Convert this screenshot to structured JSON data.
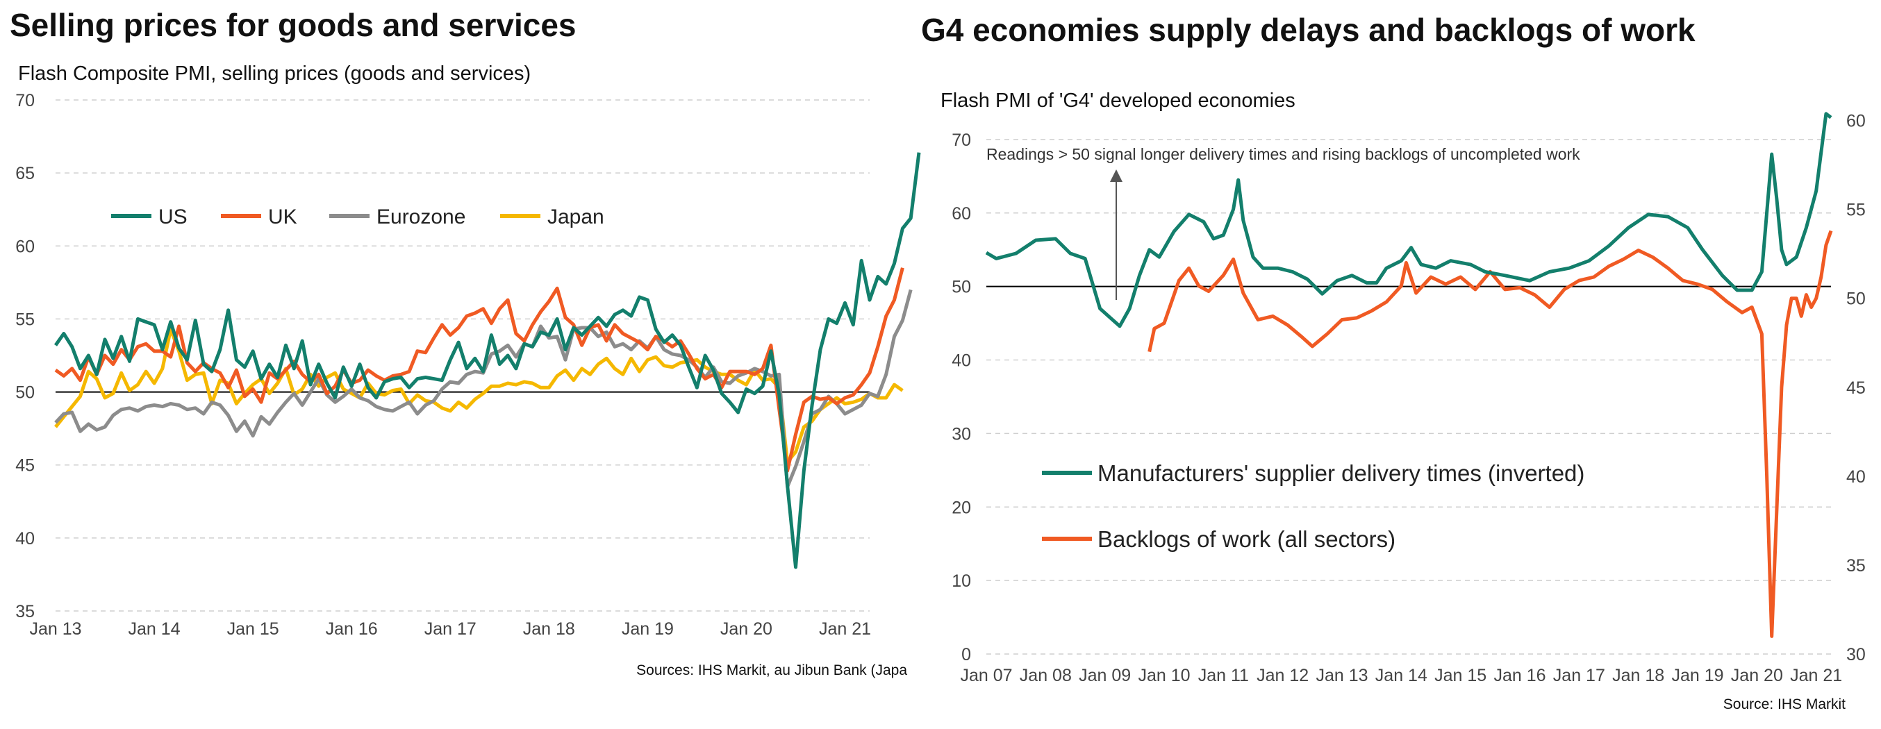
{
  "chart_data": [
    {
      "type": "line",
      "title": "Selling prices for goods and services",
      "subtitle": "Flash Composite PMI, selling prices (goods and services)",
      "source": "Sources: IHS Markit, au Jibun Bank (Japa",
      "x_labels": [
        "Jan 13",
        "Jan 14",
        "Jan 15",
        "Jan 16",
        "Jan 17",
        "Jan 18",
        "Jan 19",
        "Jan 20",
        "Jan 21"
      ],
      "x_start": "Jan 13",
      "x_end": "Apr 21",
      "y_ticks": [
        "35",
        "40",
        "45",
        "50",
        "55",
        "60",
        "65",
        "70"
      ],
      "ylim": [
        35,
        70
      ],
      "reference_line": 50,
      "grid": true,
      "legend_position": "top-left",
      "series": [
        {
          "name": "US",
          "color": "#137f6c",
          "values": [
            53.2,
            54,
            53.1,
            51.6,
            52.5,
            51.2,
            53.6,
            52.3,
            53.8,
            52.1,
            55,
            54.8,
            54.6,
            52.9,
            54.8,
            53,
            52.2,
            54.9,
            51.9,
            51.4,
            52.9,
            55.6,
            52.2,
            51.7,
            52.8,
            50.9,
            51.9,
            51,
            53.2,
            51.6,
            53.5,
            50.5,
            51.9,
            50.6,
            49.6,
            51.7,
            50.4,
            51.9,
            50.3,
            49.6,
            50.7,
            50.9,
            51,
            50.3,
            50.9,
            51,
            50.9,
            50.8,
            52.2,
            53.4,
            51.6,
            52.3,
            51.4,
            53.9,
            51.9,
            52.5,
            51.6,
            53.3,
            53.1,
            54.1,
            53.9,
            55,
            52.9,
            54.4,
            53.9,
            54.5,
            55.1,
            54.5,
            55.3,
            55.6,
            55.2,
            56.5,
            56.3,
            54.3,
            53.4,
            53.9,
            53.2,
            51.7,
            50.3,
            52.5,
            51.5,
            49.9,
            49.3,
            48.6,
            50.2,
            49.9,
            50.4,
            52.8,
            49.8,
            43.6,
            38,
            44.6,
            49.1,
            52.9,
            55,
            54.7,
            56.1,
            54.6,
            59,
            56.3,
            57.9,
            57.4,
            58.8,
            61.2,
            61.9,
            66.4
          ]
        },
        {
          "name": "UK",
          "color": "#f05a23",
          "values": [
            51.5,
            51.1,
            51.6,
            50.8,
            52.4,
            51.2,
            52.5,
            51.9,
            52.9,
            52.2,
            53.1,
            53.3,
            52.8,
            52.8,
            52.4,
            54.5,
            52,
            51.4,
            52,
            51.6,
            51.3,
            50.3,
            51.5,
            49.7,
            50.2,
            49.3,
            51.3,
            50.9,
            51.5,
            52.1,
            51.2,
            50.7,
            51.2,
            49.9,
            50.4,
            51.5,
            50.6,
            50.8,
            51.5,
            51.1,
            50.8,
            51.1,
            51.2,
            51.4,
            52.8,
            52.7,
            53.7,
            54.6,
            53.9,
            54.4,
            55.2,
            55.4,
            55.7,
            54.7,
            55.7,
            56.3,
            54,
            53.5,
            54.6,
            55.5,
            56.2,
            57.1,
            55.1,
            54.6,
            53.2,
            54.4,
            54.6,
            53.5,
            54.6,
            54,
            53.7,
            53.4,
            52.9,
            53.8,
            53.5,
            53.1,
            53.5,
            52.6,
            51.6,
            50.9,
            51.2,
            50.3,
            51.4,
            51.4,
            51.4,
            51.2,
            51.6,
            53.2,
            48.8,
            44.6,
            47.1,
            49.3,
            49.7,
            49.5,
            49.6,
            49.2,
            49.6,
            49.8,
            50.5,
            51.3,
            53.1,
            55.2,
            56.3,
            58.5
          ]
        },
        {
          "name": "Eurozone",
          "color": "#8c8c8c",
          "values": [
            47.9,
            48.5,
            48.6,
            47.3,
            47.8,
            47.4,
            47.6,
            48.4,
            48.8,
            48.9,
            48.7,
            49,
            49.1,
            49,
            49.2,
            49.1,
            48.8,
            48.9,
            48.5,
            49.3,
            49.1,
            48.4,
            47.3,
            48,
            47,
            48.3,
            47.8,
            48.6,
            49.3,
            49.9,
            49.1,
            50,
            50.9,
            49.8,
            49.3,
            49.7,
            50.2,
            49.6,
            49.4,
            49,
            48.8,
            48.7,
            49,
            49.3,
            48.5,
            49.1,
            49.4,
            50.2,
            50.7,
            50.6,
            51.2,
            51.4,
            51.3,
            52.6,
            52.8,
            53.2,
            52.4,
            53.3,
            53.1,
            54.5,
            53.7,
            53.8,
            52.2,
            54.3,
            54.4,
            54.4,
            53.8,
            54.1,
            53.1,
            53.3,
            52.9,
            53.5,
            53,
            53.8,
            52.9,
            52.6,
            52.5,
            52.2,
            51.7,
            51,
            51.7,
            50.7,
            50.6,
            51.1,
            51.3,
            51.6,
            51.4,
            51.1,
            51.2,
            43.5,
            44.9,
            46.6,
            48.5,
            48.8,
            49.7,
            49.2,
            48.5,
            48.8,
            49.1,
            49.9,
            49.7,
            51.2,
            53.8,
            54.9,
            57
          ]
        },
        {
          "name": "Japan",
          "color": "#f5b800",
          "values": [
            47.6,
            48.3,
            49,
            49.7,
            51.4,
            50.9,
            49.6,
            49.9,
            51.3,
            50.1,
            50.5,
            51.4,
            50.6,
            51.6,
            54.3,
            52.8,
            50.8,
            51.2,
            51.3,
            49.2,
            50.8,
            50.6,
            49.2,
            49.9,
            50.5,
            50.9,
            49.9,
            50.6,
            51.6,
            49.8,
            50.2,
            51.2,
            50.4,
            51,
            51.3,
            50.2,
            49.9,
            49.6,
            50.6,
            49.9,
            49.8,
            50.1,
            50.2,
            49.2,
            49.8,
            49.4,
            49.3,
            48.9,
            48.7,
            49.3,
            48.9,
            49.5,
            49.9,
            50.4,
            50.4,
            50.6,
            50.5,
            50.7,
            50.6,
            50.3,
            50.3,
            51.1,
            51.5,
            50.8,
            51.6,
            51.2,
            51.9,
            52.3,
            51.6,
            51.2,
            52.3,
            51.4,
            52.2,
            52.4,
            51.8,
            51.7,
            52,
            52.1,
            52.2,
            51.7,
            51.4,
            51.2,
            51.2,
            50.8,
            50.5,
            51.5,
            50.8,
            50.9,
            50.3,
            45.2,
            45.9,
            47.6,
            48,
            48.8,
            49.2,
            49.6,
            49.2,
            49.3,
            49.5,
            49.9,
            49.6,
            49.6,
            50.5,
            50.1
          ]
        }
      ]
    },
    {
      "type": "line",
      "title": "G4 economies supply delays and backlogs of work",
      "subtitle": "Flash PMI of 'G4' developed economies",
      "note": "Readings > 50 signal longer delivery times and rising backlogs of uncompleted work",
      "source": "Source: IHS Markit",
      "x_labels": [
        "Jan 07",
        "Jan 08",
        "Jan 09",
        "Jan 10",
        "Jan 11",
        "Jan 12",
        "Jan 13",
        "Jan 14",
        "Jan 15",
        "Jan 16",
        "Jan 17",
        "Jan 18",
        "Jan 19",
        "Jan 20",
        "Jan 21"
      ],
      "x_start": "Jan 07",
      "x_end": "Apr 21",
      "y_left_ticks": [
        "0",
        "10",
        "20",
        "30",
        "40",
        "50",
        "60",
        "70"
      ],
      "y_left_lim": [
        0,
        75
      ],
      "y_right_ticks": [
        "30",
        "35",
        "40",
        "45",
        "50",
        "55",
        "60"
      ],
      "y_right_lim": [
        30,
        61
      ],
      "reference_line": 50,
      "grid": true,
      "legend_position": "bottom-left",
      "series": [
        {
          "name": "Manufacturers' supplier delivery times (inverted)",
          "color": "#137f6c",
          "axis": "left",
          "points": [
            [
              "Jan 07",
              54.6
            ],
            [
              "Mar 07",
              53.8
            ],
            [
              "Jul 07",
              54.5
            ],
            [
              "Nov 07",
              56.3
            ],
            [
              "Mar 08",
              56.5
            ],
            [
              "Jun 08",
              54.5
            ],
            [
              "Sep 08",
              53.8
            ],
            [
              "Dec 08",
              47
            ],
            [
              "Feb 09",
              45.8
            ],
            [
              "Apr 09",
              44.6
            ],
            [
              "Jun 09",
              47
            ],
            [
              "Aug 09",
              51.5
            ],
            [
              "Oct 09",
              55
            ],
            [
              "Dec 09",
              54
            ],
            [
              "Mar 10",
              57.5
            ],
            [
              "Jun 10",
              59.8
            ],
            [
              "Sep 10",
              58.8
            ],
            [
              "Nov 10",
              56.5
            ],
            [
              "Jan 11",
              57
            ],
            [
              "Mar 11",
              60.5
            ],
            [
              "Apr 11",
              64.5
            ],
            [
              "May 11",
              59
            ],
            [
              "Jul 11",
              54
            ],
            [
              "Sep 11",
              52.5
            ],
            [
              "Dec 11",
              52.5
            ],
            [
              "Mar 12",
              52
            ],
            [
              "Jun 12",
              51
            ],
            [
              "Sep 12",
              49
            ],
            [
              "Dec 12",
              50.8
            ],
            [
              "Mar 13",
              51.5
            ],
            [
              "Jun 13",
              50.5
            ],
            [
              "Aug 13",
              50.5
            ],
            [
              "Oct 13",
              52.5
            ],
            [
              "Jan 14",
              53.5
            ],
            [
              "Mar 14",
              55.3
            ],
            [
              "May 14",
              53
            ],
            [
              "Aug 14",
              52.5
            ],
            [
              "Nov 14",
              53.5
            ],
            [
              "Mar 15",
              53
            ],
            [
              "Jun 15",
              52
            ],
            [
              "Oct 15",
              51.5
            ],
            [
              "Mar 16",
              50.8
            ],
            [
              "Jul 16",
              52
            ],
            [
              "Nov 16",
              52.5
            ],
            [
              "Mar 17",
              53.5
            ],
            [
              "Jul 17",
              55.5
            ],
            [
              "Nov 17",
              58
            ],
            [
              "Mar 18",
              59.8
            ],
            [
              "Jul 18",
              59.5
            ],
            [
              "Nov 18",
              58
            ],
            [
              "Feb 19",
              55
            ],
            [
              "Jun 19",
              51.5
            ],
            [
              "Sep 19",
              49.5
            ],
            [
              "Dec 19",
              49.5
            ],
            [
              "Feb 20",
              52
            ],
            [
              "Apr 20",
              68
            ],
            [
              "May 20",
              62
            ],
            [
              "Jun 20",
              55
            ],
            [
              "Jul 20",
              53
            ],
            [
              "Sep 20",
              54
            ],
            [
              "Nov 20",
              58
            ],
            [
              "Jan 21",
              63
            ],
            [
              "Mar 21",
              73.5
            ],
            [
              "Apr 21",
              73
            ]
          ]
        },
        {
          "name": "Backlogs of work (all sectors)",
          "color": "#f05a23",
          "axis": "right",
          "points": [
            [
              "Oct 09",
              47
            ],
            [
              "Nov 09",
              48.3
            ],
            [
              "Jan 10",
              48.6
            ],
            [
              "Apr 10",
              51
            ],
            [
              "Jun 10",
              51.7
            ],
            [
              "Aug 10",
              50.7
            ],
            [
              "Oct 10",
              50.4
            ],
            [
              "Jan 11",
              51.3
            ],
            [
              "Mar 11",
              52.2
            ],
            [
              "May 11",
              50.3
            ],
            [
              "Aug 11",
              48.8
            ],
            [
              "Nov 11",
              49
            ],
            [
              "Feb 12",
              48.5
            ],
            [
              "May 12",
              47.8
            ],
            [
              "Jul 12",
              47.3
            ],
            [
              "Oct 12",
              48
            ],
            [
              "Jan 13",
              48.8
            ],
            [
              "Apr 13",
              48.9
            ],
            [
              "Jul 13",
              49.3
            ],
            [
              "Oct 13",
              49.8
            ],
            [
              "Jan 14",
              50.7
            ],
            [
              "Feb 14",
              52
            ],
            [
              "Apr 14",
              50.3
            ],
            [
              "Jul 14",
              51.2
            ],
            [
              "Oct 14",
              50.8
            ],
            [
              "Jan 15",
              51.2
            ],
            [
              "Apr 15",
              50.5
            ],
            [
              "Jul 15",
              51.5
            ],
            [
              "Oct 15",
              50.5
            ],
            [
              "Jan 16",
              50.6
            ],
            [
              "Apr 16",
              50.2
            ],
            [
              "Jul 16",
              49.5
            ],
            [
              "Oct 16",
              50.5
            ],
            [
              "Jan 17",
              51
            ],
            [
              "Apr 17",
              51.2
            ],
            [
              "Jul 17",
              51.8
            ],
            [
              "Oct 17",
              52.2
            ],
            [
              "Jan 18",
              52.7
            ],
            [
              "Apr 18",
              52.3
            ],
            [
              "Jul 18",
              51.7
            ],
            [
              "Oct 18",
              51
            ],
            [
              "Jan 19",
              50.8
            ],
            [
              "Apr 19",
              50.5
            ],
            [
              "Jul 19",
              49.8
            ],
            [
              "Oct 19",
              49.2
            ],
            [
              "Dec 19",
              49.5
            ],
            [
              "Feb 20",
              48
            ],
            [
              "Mar 20",
              40
            ],
            [
              "Apr 20",
              31
            ],
            [
              "May 20",
              38
            ],
            [
              "Jun 20",
              45
            ],
            [
              "Jul 20",
              48.5
            ],
            [
              "Aug 20",
              50
            ],
            [
              "Sep 20",
              50
            ],
            [
              "Oct 20",
              49
            ],
            [
              "Nov 20",
              50.2
            ],
            [
              "Dec 20",
              49.5
            ],
            [
              "Jan 21",
              50
            ],
            [
              "Feb 21",
              51.2
            ],
            [
              "Mar 21",
              53
            ],
            [
              "Apr 21",
              53.8
            ]
          ]
        }
      ]
    }
  ]
}
